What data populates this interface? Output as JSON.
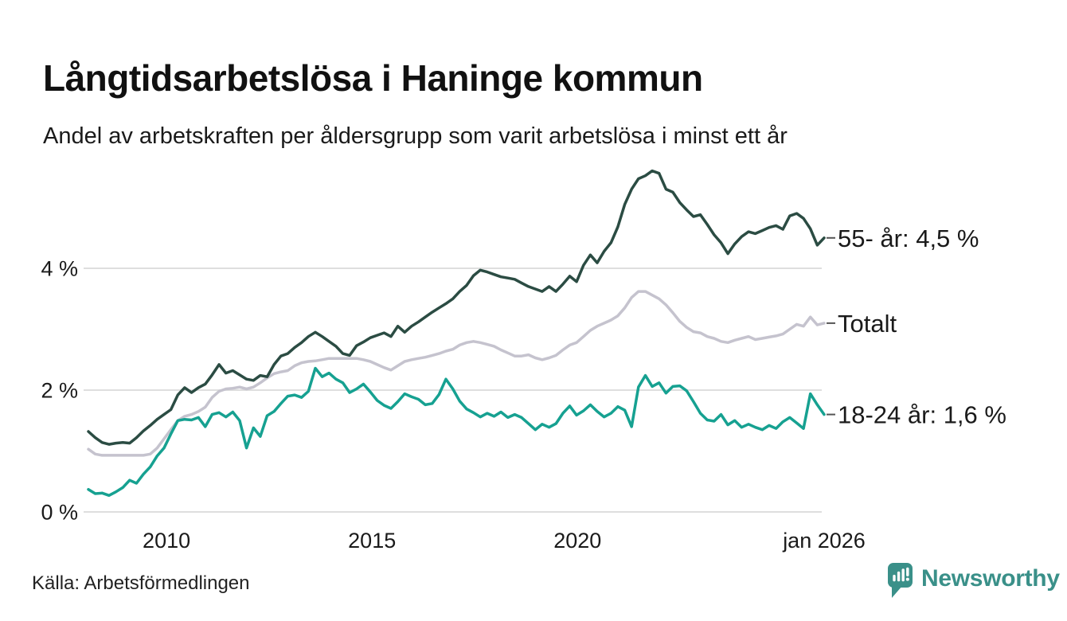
{
  "title": "Långtidsarbetslösa i Haninge kommun",
  "subtitle": "Andel av arbetskraften per åldersgrupp som varit arbetslösa i minst ett år",
  "source": "Källa: Arbetsförmedlingen",
  "branding": {
    "name": "Newsworthy",
    "color": "#3a9089",
    "icon": "bar-chart-speech-bubble"
  },
  "chart_data": {
    "type": "line",
    "title": "Långtidsarbetslösa i Haninge kommun",
    "subtitle": "Andel av arbetskraften per åldersgrupp som varit arbetslösa i minst ett år",
    "unit": "%",
    "x_start": 2008.1,
    "x_end": 2026.0,
    "x_ticks": [
      {
        "value": 2010,
        "label": "2010"
      },
      {
        "value": 2015,
        "label": "2015"
      },
      {
        "value": 2020,
        "label": "2020"
      },
      {
        "value": 2026,
        "label": "jan 2026"
      }
    ],
    "y_ticks": [
      {
        "value": 0,
        "label": "0 %"
      },
      {
        "value": 2,
        "label": "2 %"
      },
      {
        "value": 4,
        "label": "4 %"
      }
    ],
    "y_range": [
      0,
      5.85
    ],
    "grid_on": true,
    "grid_color": "#dedede",
    "label_color": "#1a1a1a",
    "dash_color": "#555555",
    "legend_position": "right-end-labels",
    "series": [
      {
        "id": "totalt",
        "name": "Totalt",
        "end_label": "Totalt",
        "end_value": 3.1,
        "color": "#c5c3ce",
        "values": [
          1.03,
          0.95,
          0.93,
          0.93,
          0.93,
          0.93,
          0.93,
          0.93,
          0.93,
          0.95,
          1.05,
          1.2,
          1.35,
          1.5,
          1.57,
          1.6,
          1.65,
          1.72,
          1.88,
          1.98,
          2.02,
          2.03,
          2.05,
          2.02,
          2.05,
          2.12,
          2.2,
          2.27,
          2.3,
          2.32,
          2.4,
          2.45,
          2.47,
          2.48,
          2.5,
          2.52,
          2.52,
          2.52,
          2.52,
          2.52,
          2.5,
          2.47,
          2.42,
          2.37,
          2.33,
          2.4,
          2.47,
          2.5,
          2.52,
          2.54,
          2.57,
          2.6,
          2.64,
          2.67,
          2.74,
          2.78,
          2.8,
          2.78,
          2.75,
          2.72,
          2.66,
          2.61,
          2.56,
          2.56,
          2.58,
          2.53,
          2.5,
          2.53,
          2.57,
          2.66,
          2.74,
          2.78,
          2.88,
          2.98,
          3.05,
          3.1,
          3.15,
          3.22,
          3.35,
          3.52,
          3.62,
          3.62,
          3.56,
          3.5,
          3.4,
          3.27,
          3.13,
          3.03,
          2.96,
          2.94,
          2.88,
          2.85,
          2.8,
          2.78,
          2.82,
          2.85,
          2.88,
          2.83,
          2.85,
          2.87,
          2.89,
          2.92,
          3.0,
          3.08,
          3.05,
          3.2,
          3.07,
          3.1
        ]
      },
      {
        "id": "55-ar",
        "name": "55- år",
        "end_label": "55- år: 4,5 %",
        "end_value": 4.5,
        "color": "#2b4c43",
        "values": [
          1.32,
          1.22,
          1.14,
          1.11,
          1.13,
          1.14,
          1.13,
          1.22,
          1.33,
          1.42,
          1.52,
          1.6,
          1.68,
          1.92,
          2.04,
          1.96,
          2.04,
          2.1,
          2.25,
          2.42,
          2.28,
          2.32,
          2.25,
          2.18,
          2.16,
          2.24,
          2.22,
          2.42,
          2.56,
          2.6,
          2.7,
          2.78,
          2.88,
          2.95,
          2.88,
          2.8,
          2.72,
          2.6,
          2.57,
          2.73,
          2.79,
          2.86,
          2.9,
          2.94,
          2.88,
          3.05,
          2.95,
          3.05,
          3.12,
          3.2,
          3.28,
          3.35,
          3.42,
          3.5,
          3.62,
          3.72,
          3.88,
          3.97,
          3.94,
          3.9,
          3.86,
          3.84,
          3.82,
          3.76,
          3.7,
          3.66,
          3.62,
          3.7,
          3.62,
          3.74,
          3.87,
          3.78,
          4.05,
          4.22,
          4.09,
          4.28,
          4.42,
          4.68,
          5.05,
          5.3,
          5.47,
          5.52,
          5.6,
          5.56,
          5.3,
          5.25,
          5.08,
          4.96,
          4.85,
          4.88,
          4.72,
          4.55,
          4.42,
          4.24,
          4.4,
          4.52,
          4.6,
          4.57,
          4.62,
          4.67,
          4.7,
          4.64,
          4.86,
          4.9,
          4.82,
          4.65,
          4.38,
          4.5
        ]
      },
      {
        "id": "18-24-ar",
        "name": "18-24 år",
        "end_label": "18-24 år: 1,6 %",
        "end_value": 1.6,
        "color": "#16a191",
        "values": [
          0.37,
          0.3,
          0.31,
          0.27,
          0.33,
          0.4,
          0.52,
          0.47,
          0.62,
          0.74,
          0.92,
          1.05,
          1.28,
          1.5,
          1.52,
          1.51,
          1.55,
          1.4,
          1.6,
          1.63,
          1.56,
          1.64,
          1.5,
          1.05,
          1.38,
          1.24,
          1.58,
          1.65,
          1.78,
          1.9,
          1.92,
          1.88,
          1.98,
          2.36,
          2.22,
          2.28,
          2.18,
          2.12,
          1.96,
          2.02,
          2.1,
          1.97,
          1.83,
          1.75,
          1.7,
          1.81,
          1.94,
          1.89,
          1.85,
          1.76,
          1.78,
          1.93,
          2.18,
          2.02,
          1.82,
          1.69,
          1.63,
          1.56,
          1.62,
          1.57,
          1.64,
          1.55,
          1.6,
          1.55,
          1.45,
          1.35,
          1.44,
          1.39,
          1.45,
          1.62,
          1.74,
          1.59,
          1.66,
          1.76,
          1.65,
          1.56,
          1.62,
          1.73,
          1.67,
          1.4,
          2.05,
          2.24,
          2.06,
          2.12,
          1.95,
          2.06,
          2.07,
          1.99,
          1.81,
          1.62,
          1.51,
          1.49,
          1.6,
          1.43,
          1.5,
          1.39,
          1.44,
          1.39,
          1.35,
          1.42,
          1.37,
          1.48,
          1.55,
          1.46,
          1.37,
          1.94,
          1.76,
          1.6
        ]
      }
    ]
  }
}
